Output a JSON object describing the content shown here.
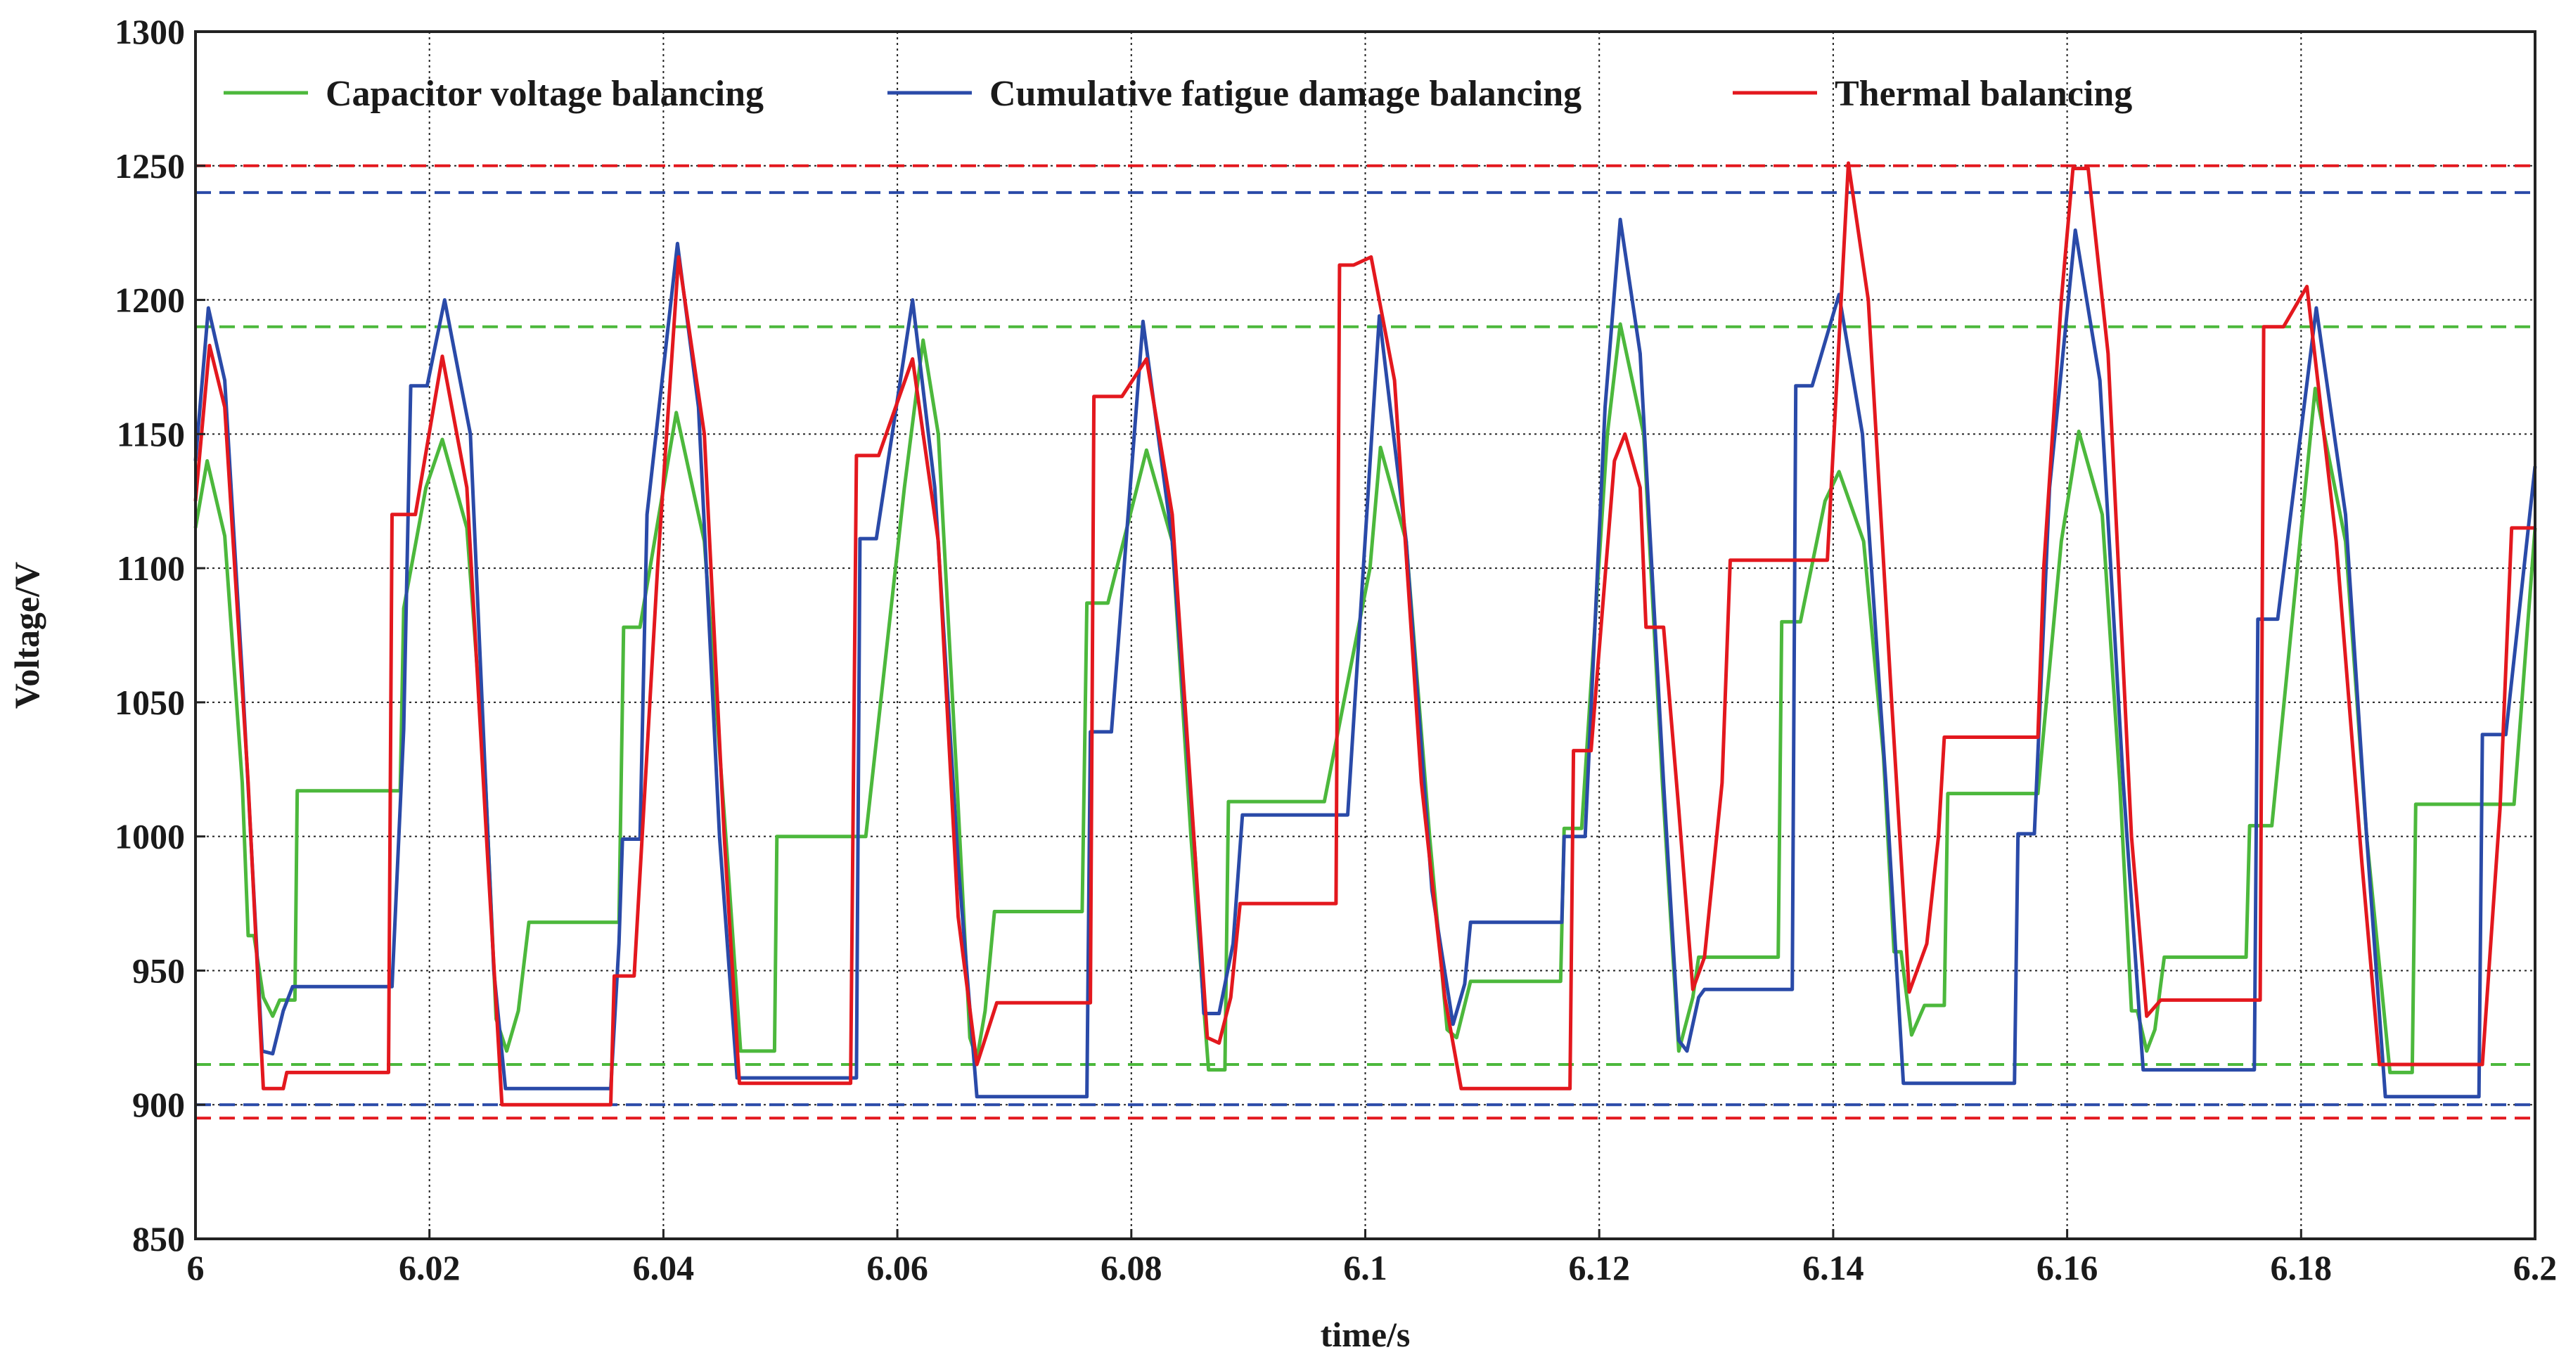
{
  "chart_data": {
    "type": "line",
    "title": "",
    "xlabel": "time/s",
    "ylabel": "Voltage/V",
    "xlim": [
      6.0,
      6.2
    ],
    "ylim": [
      850,
      1300
    ],
    "x_ticks": [
      6.0,
      6.02,
      6.04,
      6.06,
      6.08,
      6.1,
      6.12,
      6.14,
      6.16,
      6.18,
      6.2
    ],
    "x_tick_labels": [
      "6",
      "6.02",
      "6.04",
      "6.06",
      "6.08",
      "6.1",
      "6.12",
      "6.14",
      "6.16",
      "6.18",
      "6.2"
    ],
    "y_ticks": [
      850,
      900,
      950,
      1000,
      1050,
      1100,
      1150,
      1200,
      1250,
      1300
    ],
    "y_tick_labels": [
      "850",
      "900",
      "950",
      "1000",
      "1050",
      "1100",
      "1150",
      "1200",
      "1250",
      "1300"
    ],
    "grid": true,
    "legend_position": "top",
    "series": [
      {
        "name": "Capacitor voltage balancing",
        "color": "#4cb83c",
        "points": [
          [
            6.0,
            1115
          ],
          [
            6.001,
            1140
          ],
          [
            6.0025,
            1112
          ],
          [
            6.004,
            1020
          ],
          [
            6.0045,
            963
          ],
          [
            6.005,
            963
          ],
          [
            6.0058,
            940
          ],
          [
            6.0066,
            933
          ],
          [
            6.0072,
            939
          ],
          [
            6.0085,
            939
          ],
          [
            6.0087,
            1017
          ],
          [
            6.0175,
            1017
          ],
          [
            6.0178,
            1085
          ],
          [
            6.0197,
            1130
          ],
          [
            6.0211,
            1148
          ],
          [
            6.0232,
            1115
          ],
          [
            6.0248,
            1020
          ],
          [
            6.0257,
            932
          ],
          [
            6.0266,
            920
          ],
          [
            6.0276,
            935
          ],
          [
            6.0285,
            968
          ],
          [
            6.0362,
            968
          ],
          [
            6.0366,
            1078
          ],
          [
            6.038,
            1078
          ],
          [
            6.0411,
            1158
          ],
          [
            6.0435,
            1110
          ],
          [
            6.0455,
            990
          ],
          [
            6.0466,
            920
          ],
          [
            6.0495,
            920
          ],
          [
            6.0497,
            1000
          ],
          [
            6.0573,
            1000
          ],
          [
            6.0606,
            1130
          ],
          [
            6.0622,
            1185
          ],
          [
            6.0635,
            1150
          ],
          [
            6.0651,
            1020
          ],
          [
            6.0662,
            925
          ],
          [
            6.0668,
            917
          ],
          [
            6.0675,
            935
          ],
          [
            6.0683,
            972
          ],
          [
            6.0758,
            972
          ],
          [
            6.0762,
            1087
          ],
          [
            6.078,
            1087
          ],
          [
            6.0813,
            1144
          ],
          [
            6.0835,
            1110
          ],
          [
            6.0851,
            1000
          ],
          [
            6.0866,
            913
          ],
          [
            6.088,
            913
          ],
          [
            6.0883,
            1013
          ],
          [
            6.0965,
            1013
          ],
          [
            6.1004,
            1100
          ],
          [
            6.1013,
            1145
          ],
          [
            6.1035,
            1110
          ],
          [
            6.1055,
            1000
          ],
          [
            6.107,
            928
          ],
          [
            6.1078,
            925
          ],
          [
            6.109,
            946
          ],
          [
            6.1167,
            946
          ],
          [
            6.117,
            1003
          ],
          [
            6.1185,
            1003
          ],
          [
            6.1207,
            1150
          ],
          [
            6.1218,
            1191
          ],
          [
            6.1238,
            1150
          ],
          [
            6.1254,
            1020
          ],
          [
            6.1268,
            920
          ],
          [
            6.128,
            940
          ],
          [
            6.1285,
            955
          ],
          [
            6.1353,
            955
          ],
          [
            6.1356,
            1080
          ],
          [
            6.1372,
            1080
          ],
          [
            6.1393,
            1125
          ],
          [
            6.1405,
            1136
          ],
          [
            6.1426,
            1110
          ],
          [
            6.1443,
            1030
          ],
          [
            6.1452,
            957
          ],
          [
            6.1458,
            957
          ],
          [
            6.1467,
            926
          ],
          [
            6.1478,
            937
          ],
          [
            6.1495,
            937
          ],
          [
            6.1498,
            1016
          ],
          [
            6.1575,
            1016
          ],
          [
            6.1595,
            1110
          ],
          [
            6.161,
            1151
          ],
          [
            6.163,
            1120
          ],
          [
            6.1645,
            1020
          ],
          [
            6.1655,
            935
          ],
          [
            6.166,
            935
          ],
          [
            6.1668,
            920
          ],
          [
            6.1675,
            928
          ],
          [
            6.1683,
            955
          ],
          [
            6.1753,
            955
          ],
          [
            6.1756,
            1004
          ],
          [
            6.1775,
            1004
          ],
          [
            6.1812,
            1167
          ],
          [
            6.1838,
            1110
          ],
          [
            6.1856,
            1000
          ],
          [
            6.1876,
            912
          ],
          [
            6.1895,
            912
          ],
          [
            6.1898,
            1012
          ],
          [
            6.1982,
            1012
          ],
          [
            6.2,
            1115
          ]
        ]
      },
      {
        "name": "Cumulative fatigue damage balancing",
        "color": "#2a4aa8",
        "points": [
          [
            6.0,
            1140
          ],
          [
            6.0011,
            1197
          ],
          [
            6.0025,
            1170
          ],
          [
            6.004,
            1060
          ],
          [
            6.0057,
            920
          ],
          [
            6.0066,
            919
          ],
          [
            6.0075,
            935
          ],
          [
            6.0083,
            944
          ],
          [
            6.0168,
            944
          ],
          [
            6.0178,
            1040
          ],
          [
            6.0184,
            1168
          ],
          [
            6.0198,
            1168
          ],
          [
            6.0213,
            1200
          ],
          [
            6.0235,
            1150
          ],
          [
            6.0255,
            950
          ],
          [
            6.0265,
            906
          ],
          [
            6.0355,
            906
          ],
          [
            6.0362,
            960
          ],
          [
            6.0365,
            999
          ],
          [
            6.038,
            999
          ],
          [
            6.0386,
            1120
          ],
          [
            6.0412,
            1221
          ],
          [
            6.043,
            1160
          ],
          [
            6.0448,
            1000
          ],
          [
            6.0463,
            910
          ],
          [
            6.0565,
            910
          ],
          [
            6.0568,
            1111
          ],
          [
            6.0582,
            1111
          ],
          [
            6.0613,
            1200
          ],
          [
            6.0632,
            1130
          ],
          [
            6.0652,
            990
          ],
          [
            6.0668,
            903
          ],
          [
            6.0762,
            903
          ],
          [
            6.0765,
            1039
          ],
          [
            6.0783,
            1039
          ],
          [
            6.081,
            1192
          ],
          [
            6.0835,
            1110
          ],
          [
            6.0855,
            990
          ],
          [
            6.0862,
            934
          ],
          [
            6.0875,
            934
          ],
          [
            6.0887,
            960
          ],
          [
            6.0895,
            1008
          ],
          [
            6.0985,
            1008
          ],
          [
            6.1012,
            1194
          ],
          [
            6.1035,
            1110
          ],
          [
            6.1057,
            980
          ],
          [
            6.1075,
            930
          ],
          [
            6.1085,
            945
          ],
          [
            6.109,
            968
          ],
          [
            6.1168,
            968
          ],
          [
            6.117,
            1000
          ],
          [
            6.1188,
            1000
          ],
          [
            6.1205,
            1160
          ],
          [
            6.1218,
            1230
          ],
          [
            6.1235,
            1180
          ],
          [
            6.1255,
            1020
          ],
          [
            6.1268,
            924
          ],
          [
            6.1275,
            920
          ],
          [
            6.1285,
            940
          ],
          [
            6.129,
            943
          ],
          [
            6.1365,
            943
          ],
          [
            6.1368,
            1168
          ],
          [
            6.1382,
            1168
          ],
          [
            6.1405,
            1202
          ],
          [
            6.1425,
            1150
          ],
          [
            6.1445,
            1020
          ],
          [
            6.146,
            908
          ],
          [
            6.1555,
            908
          ],
          [
            6.1558,
            1001
          ],
          [
            6.1572,
            1001
          ],
          [
            6.1585,
            1130
          ],
          [
            6.1607,
            1226
          ],
          [
            6.1628,
            1170
          ],
          [
            6.1648,
            1020
          ],
          [
            6.1665,
            913
          ],
          [
            6.176,
            913
          ],
          [
            6.1763,
            1081
          ],
          [
            6.178,
            1081
          ],
          [
            6.1813,
            1197
          ],
          [
            6.1838,
            1120
          ],
          [
            6.1856,
            1000
          ],
          [
            6.1872,
            903
          ],
          [
            6.1952,
            903
          ],
          [
            6.1955,
            1038
          ],
          [
            6.1975,
            1038
          ],
          [
            6.2,
            1138
          ]
        ]
      },
      {
        "name": "Thermal balancing",
        "color": "#e3181e",
        "points": [
          [
            6.0,
            1125
          ],
          [
            6.0012,
            1183
          ],
          [
            6.0025,
            1160
          ],
          [
            6.0045,
            1020
          ],
          [
            6.0055,
            932
          ],
          [
            6.0058,
            906
          ],
          [
            6.0075,
            906
          ],
          [
            6.0078,
            912
          ],
          [
            6.0165,
            912
          ],
          [
            6.0168,
            1120
          ],
          [
            6.0188,
            1120
          ],
          [
            6.0211,
            1179
          ],
          [
            6.0232,
            1130
          ],
          [
            6.025,
            990
          ],
          [
            6.0262,
            900
          ],
          [
            6.0355,
            900
          ],
          [
            6.0358,
            948
          ],
          [
            6.0375,
            948
          ],
          [
            6.0395,
            1100
          ],
          [
            6.0413,
            1216
          ],
          [
            6.0435,
            1150
          ],
          [
            6.0452,
            1000
          ],
          [
            6.0465,
            908
          ],
          [
            6.056,
            908
          ],
          [
            6.0565,
            1142
          ],
          [
            6.0584,
            1142
          ],
          [
            6.0613,
            1178
          ],
          [
            6.0635,
            1110
          ],
          [
            6.0652,
            970
          ],
          [
            6.0668,
            915
          ],
          [
            6.0685,
            938
          ],
          [
            6.0765,
            938
          ],
          [
            6.0768,
            1164
          ],
          [
            6.0792,
            1164
          ],
          [
            6.0813,
            1178
          ],
          [
            6.0835,
            1120
          ],
          [
            6.0855,
            990
          ],
          [
            6.0865,
            925
          ],
          [
            6.0875,
            923
          ],
          [
            6.0885,
            940
          ],
          [
            6.0893,
            975
          ],
          [
            6.0975,
            975
          ],
          [
            6.0978,
            1213
          ],
          [
            6.099,
            1213
          ],
          [
            6.1005,
            1216
          ],
          [
            6.1025,
            1170
          ],
          [
            6.1048,
            1020
          ],
          [
            6.1068,
            940
          ],
          [
            6.1082,
            906
          ],
          [
            6.1175,
            906
          ],
          [
            6.1178,
            1032
          ],
          [
            6.1193,
            1032
          ],
          [
            6.1213,
            1140
          ],
          [
            6.1222,
            1150
          ],
          [
            6.1235,
            1130
          ],
          [
            6.124,
            1078
          ],
          [
            6.1255,
            1078
          ],
          [
            6.1268,
            1010
          ],
          [
            6.128,
            943
          ],
          [
            6.129,
            955
          ],
          [
            6.1305,
            1020
          ],
          [
            6.1312,
            1103
          ],
          [
            6.1395,
            1103
          ],
          [
            6.1413,
            1251
          ],
          [
            6.143,
            1200
          ],
          [
            6.145,
            1050
          ],
          [
            6.1465,
            942
          ],
          [
            6.148,
            960
          ],
          [
            6.149,
            1000
          ],
          [
            6.1495,
            1037
          ],
          [
            6.1575,
            1037
          ],
          [
            6.158,
            1100
          ],
          [
            6.1595,
            1200
          ],
          [
            6.1605,
            1249
          ],
          [
            6.1618,
            1249
          ],
          [
            6.1635,
            1180
          ],
          [
            6.1655,
            1000
          ],
          [
            6.1668,
            933
          ],
          [
            6.168,
            939
          ],
          [
            6.1765,
            939
          ],
          [
            6.1768,
            1190
          ],
          [
            6.1785,
            1190
          ],
          [
            6.1805,
            1205
          ],
          [
            6.183,
            1110
          ],
          [
            6.1852,
            990
          ],
          [
            6.1867,
            915
          ],
          [
            6.1955,
            915
          ],
          [
            6.197,
            1010
          ],
          [
            6.198,
            1115
          ],
          [
            6.2,
            1115
          ]
        ]
      }
    ],
    "reference_lines": [
      {
        "y": 1250,
        "color": "#e3181e",
        "style": "dashed"
      },
      {
        "y": 1240,
        "color": "#2a4aa8",
        "style": "dashed"
      },
      {
        "y": 1190,
        "color": "#4cb83c",
        "style": "dashed"
      },
      {
        "y": 915,
        "color": "#4cb83c",
        "style": "dashed"
      },
      {
        "y": 900,
        "color": "#2a4aa8",
        "style": "dashed"
      },
      {
        "y": 895,
        "color": "#e3181e",
        "style": "dashed"
      }
    ]
  }
}
